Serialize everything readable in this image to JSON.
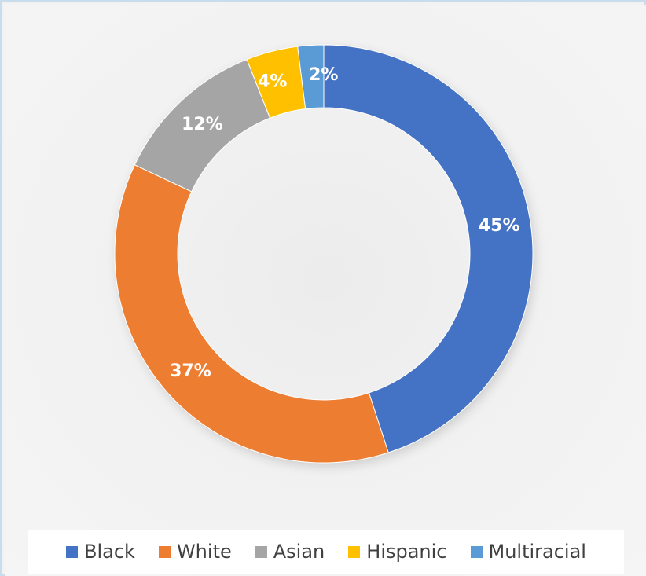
{
  "chart_data": {
    "type": "pie",
    "variant": "donut",
    "start_angle_deg": 0,
    "direction": "clockwise",
    "legend_position": "bottom",
    "series": [
      {
        "name": "Black",
        "value": 45,
        "label": "45%",
        "color": "#4472C4"
      },
      {
        "name": "White",
        "value": 37,
        "label": "37%",
        "color": "#ED7D31"
      },
      {
        "name": "Asian",
        "value": 12,
        "label": "12%",
        "color": "#A5A5A5"
      },
      {
        "name": "Hispanic",
        "value": 4,
        "label": "4%",
        "color": "#FFC000"
      },
      {
        "name": "Multiracial",
        "value": 2,
        "label": "2%",
        "color": "#5B9BD5"
      }
    ]
  }
}
